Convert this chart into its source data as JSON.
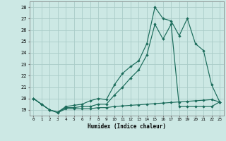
{
  "xlabel": "Humidex (Indice chaleur)",
  "bg_color": "#cce8e4",
  "grid_color": "#aaccc8",
  "line_color": "#1a6b5a",
  "xlim": [
    -0.5,
    23.5
  ],
  "ylim": [
    18.5,
    28.5
  ],
  "xticks": [
    0,
    1,
    2,
    3,
    4,
    5,
    6,
    7,
    8,
    9,
    10,
    11,
    12,
    13,
    14,
    15,
    16,
    17,
    18,
    19,
    20,
    21,
    22,
    23
  ],
  "yticks": [
    19,
    20,
    21,
    22,
    23,
    24,
    25,
    26,
    27,
    28
  ],
  "line1_x": [
    0,
    1,
    2,
    3,
    4,
    5,
    6,
    7,
    8,
    9,
    10,
    11,
    12,
    13,
    14,
    15,
    16,
    17,
    18,
    19,
    20,
    21,
    22,
    23
  ],
  "line1_y": [
    20.0,
    19.5,
    19.0,
    18.8,
    19.3,
    19.4,
    19.5,
    19.8,
    20.0,
    19.9,
    21.2,
    22.2,
    22.8,
    23.3,
    24.8,
    28.0,
    27.0,
    26.8,
    25.5,
    27.0,
    24.8,
    24.2,
    21.2,
    19.7
  ],
  "line2_x": [
    0,
    1,
    2,
    3,
    4,
    5,
    6,
    7,
    8,
    9,
    10,
    11,
    12,
    13,
    14,
    15,
    16,
    17,
    18,
    19,
    20,
    21,
    22,
    23
  ],
  "line2_y": [
    20.0,
    19.5,
    19.0,
    18.8,
    19.2,
    19.2,
    19.3,
    19.3,
    19.5,
    19.5,
    20.3,
    21.0,
    21.8,
    22.5,
    23.8,
    26.5,
    25.2,
    26.5,
    19.3,
    19.3,
    19.3,
    19.3,
    19.3,
    19.7
  ],
  "line3_x": [
    0,
    1,
    2,
    3,
    4,
    5,
    6,
    7,
    8,
    9,
    10,
    11,
    12,
    13,
    14,
    15,
    16,
    17,
    18,
    19,
    20,
    21,
    22,
    23
  ],
  "line3_y": [
    20.0,
    19.5,
    19.0,
    18.75,
    19.1,
    19.1,
    19.1,
    19.1,
    19.2,
    19.2,
    19.3,
    19.35,
    19.4,
    19.45,
    19.5,
    19.55,
    19.6,
    19.65,
    19.7,
    19.75,
    19.8,
    19.85,
    19.9,
    19.7
  ]
}
